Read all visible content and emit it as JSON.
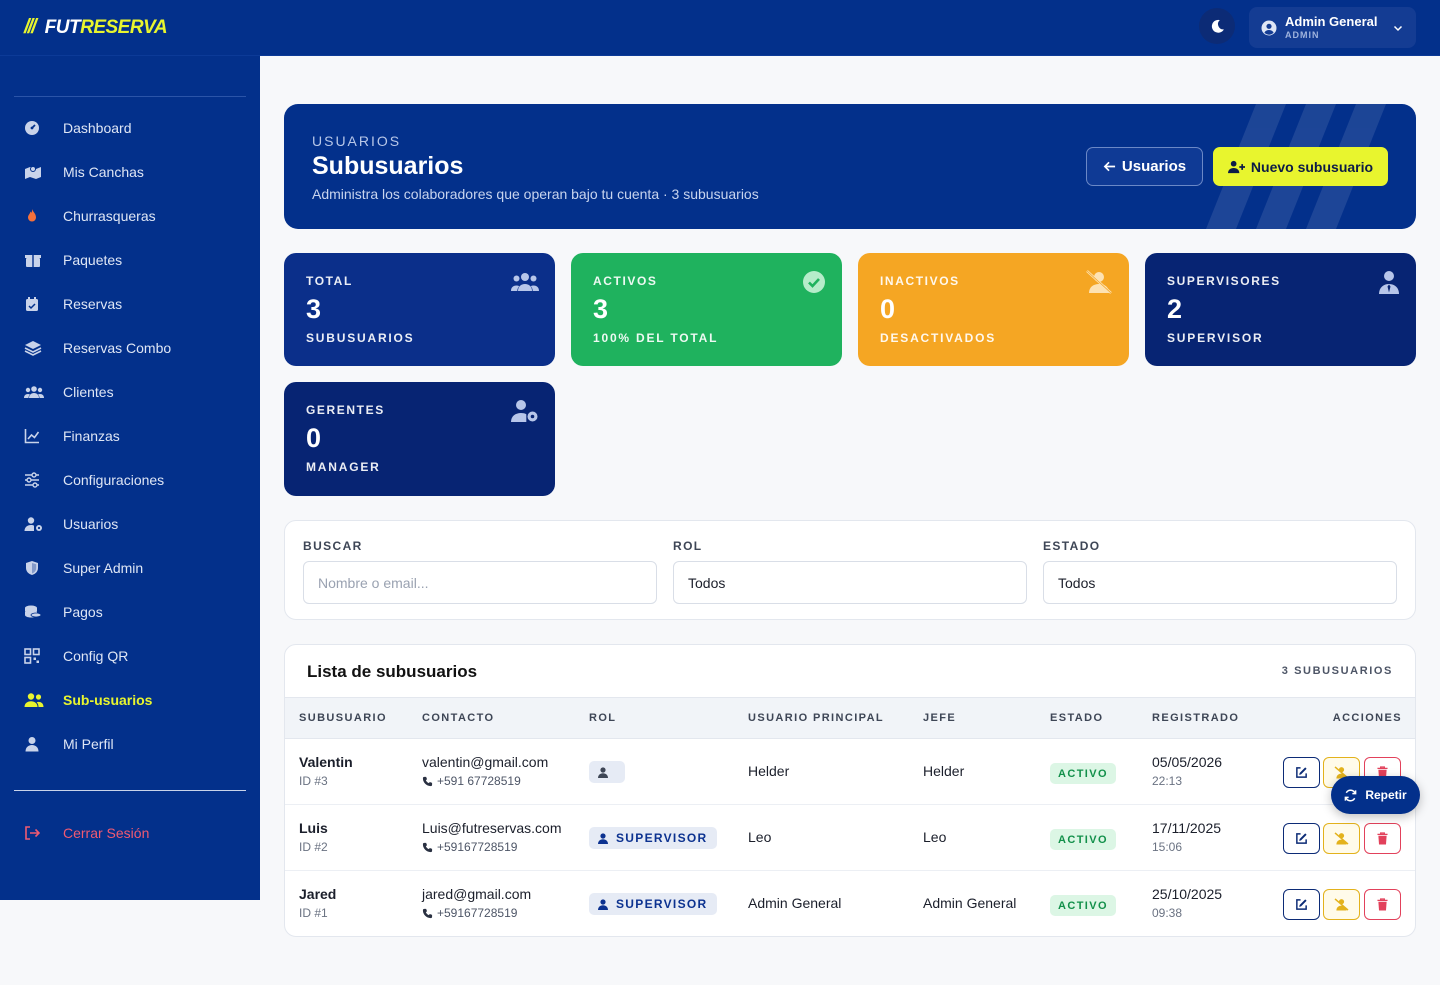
{
  "brand": {
    "slashes": "///",
    "name_part1": "FUT",
    "name_part2": "RESERVA"
  },
  "header": {
    "user_name": "Admin General",
    "user_role": "ADMIN"
  },
  "sidebar": {
    "items": [
      {
        "label": "Dashboard",
        "icon": "dashboard-icon"
      },
      {
        "label": "Mis Canchas",
        "icon": "map-icon"
      },
      {
        "label": "Churrasqueras",
        "icon": "fire-icon"
      },
      {
        "label": "Paquetes",
        "icon": "box-icon"
      },
      {
        "label": "Reservas",
        "icon": "calendar-icon"
      },
      {
        "label": "Reservas Combo",
        "icon": "layers-icon"
      },
      {
        "label": "Clientes",
        "icon": "users-icon"
      },
      {
        "label": "Finanzas",
        "icon": "chart-line-icon"
      },
      {
        "label": "Configuraciones",
        "icon": "sliders-icon"
      },
      {
        "label": "Usuarios",
        "icon": "user-gear-icon"
      },
      {
        "label": "Super Admin",
        "icon": "shield-icon"
      },
      {
        "label": "Pagos",
        "icon": "coins-icon"
      },
      {
        "label": "Config QR",
        "icon": "qr-icon"
      },
      {
        "label": "Sub-usuarios",
        "icon": "user-group-icon"
      },
      {
        "label": "Mi Perfil",
        "icon": "user-icon"
      }
    ],
    "logout": "Cerrar Sesión"
  },
  "hero": {
    "eyebrow": "USUARIOS",
    "title": "Subusuarios",
    "subtitle": "Administra los colaboradores que operan bajo tu cuenta · 3 subusuarios",
    "back_button": "Usuarios",
    "new_button": "Nuevo subusuario"
  },
  "stats": [
    {
      "label": "TOTAL",
      "value": "3",
      "sub": "SUBUSUARIOS",
      "color": "#0b2f8a"
    },
    {
      "label": "ACTIVOS",
      "value": "3",
      "sub": "100% DEL TOTAL",
      "color": "#1fb25e"
    },
    {
      "label": "INACTIVOS",
      "value": "0",
      "sub": "DESACTIVADOS",
      "color": "#f5a623"
    },
    {
      "label": "SUPERVISORES",
      "value": "2",
      "sub": "SUPERVISOR",
      "color": "#072473"
    },
    {
      "label": "GERENTES",
      "value": "0",
      "sub": "MANAGER",
      "color": "#072473"
    }
  ],
  "filters": {
    "search_label": "BUSCAR",
    "search_placeholder": "Nombre o email...",
    "role_label": "ROL",
    "role_value": "Todos",
    "status_label": "ESTADO",
    "status_value": "Todos"
  },
  "table": {
    "title": "Lista de subusuarios",
    "count": "3 SUBUSUARIOS",
    "headers": [
      "SUBUSUARIO",
      "CONTACTO",
      "ROL",
      "USUARIO PRINCIPAL",
      "JEFE",
      "ESTADO",
      "REGISTRADO",
      "ACCIONES"
    ],
    "rows": [
      {
        "name": "Valentin",
        "id": "ID #3",
        "email": "valentin@gmail.com",
        "phone": "+591 67728519",
        "role": "",
        "principal": "Helder",
        "jefe": "Helder",
        "status": "ACTIVO",
        "date": "05/05/2026",
        "time": "22:13"
      },
      {
        "name": "Luis",
        "id": "ID #2",
        "email": "Luis@futreservas.com",
        "phone": "+59167728519",
        "role": "SUPERVISOR",
        "principal": "Leo",
        "jefe": "Leo",
        "status": "ACTIVO",
        "date": "17/11/2025",
        "time": "15:06"
      },
      {
        "name": "Jared",
        "id": "ID #1",
        "email": "jared@gmail.com",
        "phone": "+59167728519",
        "role": "SUPERVISOR",
        "principal": "Admin General",
        "jefe": "Admin General",
        "status": "ACTIVO",
        "date": "25/10/2025",
        "time": "09:38"
      }
    ]
  },
  "repeat_button": "Repetir"
}
